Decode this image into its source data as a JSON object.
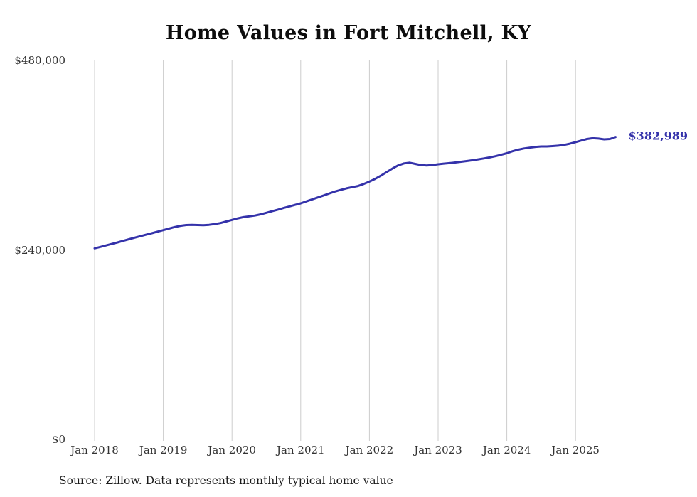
{
  "page": {
    "source_note": "Source: Zillow. Data represents monthly typical home value"
  },
  "colors": {
    "line": "#3432aa",
    "value_label": "#3432aa",
    "grid": "#cccccc",
    "tick_text": "#333333"
  },
  "chart_data": {
    "type": "line",
    "title": "Home Values in Fort Mitchell, KY",
    "xlabel": "",
    "ylabel": "",
    "ylim": [
      0,
      480000
    ],
    "grid": "vertical",
    "legend": "none",
    "latest_value_label": "$382,989",
    "x_tick_labels": [
      "Jan 2018",
      "Jan 2019",
      "Jan 2020",
      "Jan 2021",
      "Jan 2022",
      "Jan 2023",
      "Jan 2024",
      "Jan 2025"
    ],
    "y_ticks": [
      {
        "value": 480000,
        "label": "$480,000"
      },
      {
        "value": 240000,
        "label": "$240,000"
      },
      {
        "value": 0,
        "label": "$0"
      }
    ],
    "x": [
      "2018-01",
      "2018-02",
      "2018-03",
      "2018-04",
      "2018-05",
      "2018-06",
      "2018-07",
      "2018-08",
      "2018-09",
      "2018-10",
      "2018-11",
      "2018-12",
      "2019-01",
      "2019-02",
      "2019-03",
      "2019-04",
      "2019-05",
      "2019-06",
      "2019-07",
      "2019-08",
      "2019-09",
      "2019-10",
      "2019-11",
      "2019-12",
      "2020-01",
      "2020-02",
      "2020-03",
      "2020-04",
      "2020-05",
      "2020-06",
      "2020-07",
      "2020-08",
      "2020-09",
      "2020-10",
      "2020-11",
      "2020-12",
      "2021-01",
      "2021-02",
      "2021-03",
      "2021-04",
      "2021-05",
      "2021-06",
      "2021-07",
      "2021-08",
      "2021-09",
      "2021-10",
      "2021-11",
      "2021-12",
      "2022-01",
      "2022-02",
      "2022-03",
      "2022-04",
      "2022-05",
      "2022-06",
      "2022-07",
      "2022-08",
      "2022-09",
      "2022-10",
      "2022-11",
      "2022-12",
      "2023-01",
      "2023-02",
      "2023-03",
      "2023-04",
      "2023-05",
      "2023-06",
      "2023-07",
      "2023-08",
      "2023-09",
      "2023-10",
      "2023-11",
      "2023-12",
      "2024-01",
      "2024-02",
      "2024-03",
      "2024-04",
      "2024-05",
      "2024-06",
      "2024-07",
      "2024-08",
      "2024-09",
      "2024-10",
      "2024-11",
      "2024-12",
      "2025-01",
      "2025-02",
      "2025-03",
      "2025-04",
      "2025-05",
      "2025-06",
      "2025-07",
      "2025-08"
    ],
    "series": [
      {
        "name": "Typical home value",
        "values": [
          242000,
          243800,
          245700,
          247600,
          249500,
          251500,
          253500,
          255500,
          257400,
          259300,
          261200,
          263100,
          265000,
          267000,
          269000,
          270500,
          271500,
          271800,
          271500,
          271300,
          271800,
          272800,
          274000,
          276000,
          278000,
          280000,
          281500,
          282500,
          283500,
          285000,
          287000,
          289000,
          291000,
          293000,
          295000,
          297000,
          299000,
          301500,
          304000,
          306500,
          309000,
          311500,
          314000,
          316000,
          318000,
          319500,
          321000,
          323500,
          326500,
          330000,
          334000,
          338500,
          343000,
          347000,
          349500,
          350500,
          349000,
          347500,
          347000,
          347500,
          348500,
          349300,
          350000,
          350800,
          351700,
          352600,
          353600,
          354700,
          355900,
          357200,
          358700,
          360500,
          362500,
          365000,
          367000,
          368500,
          369500,
          370500,
          371000,
          371000,
          371500,
          372000,
          373000,
          374500,
          376500,
          378500,
          380500,
          381500,
          381000,
          380000,
          380500,
          382989
        ]
      }
    ]
  }
}
